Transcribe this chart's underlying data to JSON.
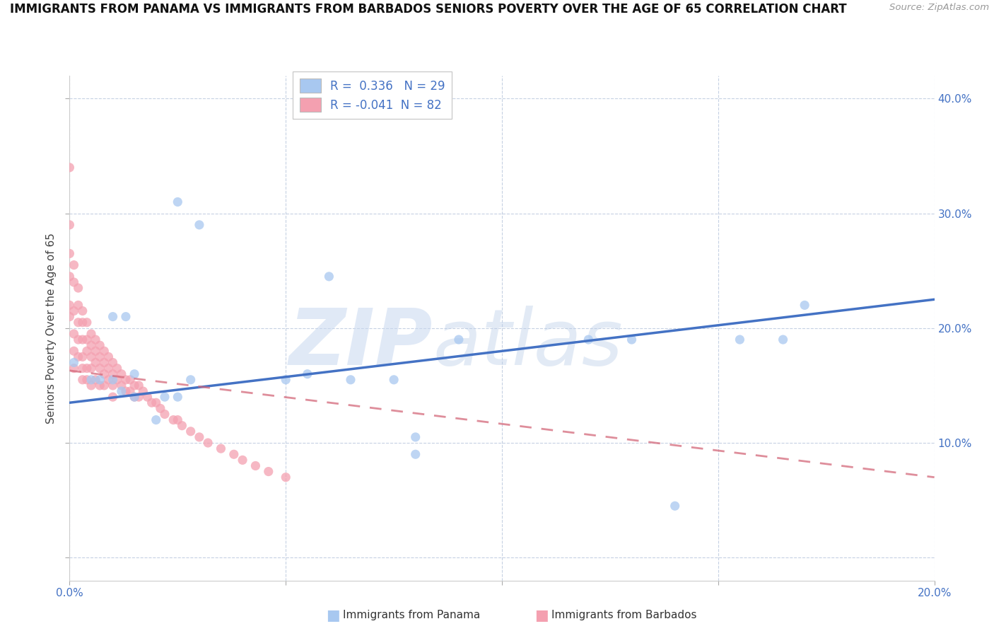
{
  "title": "IMMIGRANTS FROM PANAMA VS IMMIGRANTS FROM BARBADOS SENIORS POVERTY OVER THE AGE OF 65 CORRELATION CHART",
  "source": "Source: ZipAtlas.com",
  "ylabel": "Seniors Poverty Over the Age of 65",
  "xlim": [
    0.0,
    0.2
  ],
  "ylim": [
    -0.02,
    0.42
  ],
  "panama_color": "#a8c8f0",
  "barbados_color": "#f4a0b0",
  "panama_line_color": "#4472c4",
  "barbados_line_color": "#d4687a",
  "panama_R": 0.336,
  "panama_N": 29,
  "barbados_R": -0.041,
  "barbados_N": 82,
  "panama_trend_x": [
    0.0,
    0.2
  ],
  "panama_trend_y": [
    0.135,
    0.225
  ],
  "barbados_trend_x": [
    0.0,
    0.2
  ],
  "barbados_trend_y": [
    0.163,
    0.07
  ],
  "panama_points_x": [
    0.001,
    0.005,
    0.007,
    0.01,
    0.01,
    0.012,
    0.013,
    0.015,
    0.015,
    0.02,
    0.022,
    0.025,
    0.025,
    0.028,
    0.03,
    0.05,
    0.055,
    0.06,
    0.065,
    0.075,
    0.08,
    0.08,
    0.09,
    0.12,
    0.13,
    0.14,
    0.155,
    0.165,
    0.17
  ],
  "panama_points_y": [
    0.17,
    0.155,
    0.155,
    0.155,
    0.21,
    0.145,
    0.21,
    0.14,
    0.16,
    0.12,
    0.14,
    0.14,
    0.31,
    0.155,
    0.29,
    0.155,
    0.16,
    0.245,
    0.155,
    0.155,
    0.105,
    0.09,
    0.19,
    0.19,
    0.19,
    0.045,
    0.19,
    0.19,
    0.22
  ],
  "barbados_points_x": [
    0.0,
    0.0,
    0.0,
    0.0,
    0.0,
    0.0,
    0.001,
    0.001,
    0.001,
    0.001,
    0.001,
    0.001,
    0.002,
    0.002,
    0.002,
    0.002,
    0.002,
    0.003,
    0.003,
    0.003,
    0.003,
    0.003,
    0.003,
    0.004,
    0.004,
    0.004,
    0.004,
    0.004,
    0.005,
    0.005,
    0.005,
    0.005,
    0.005,
    0.006,
    0.006,
    0.006,
    0.006,
    0.007,
    0.007,
    0.007,
    0.007,
    0.008,
    0.008,
    0.008,
    0.008,
    0.009,
    0.009,
    0.009,
    0.01,
    0.01,
    0.01,
    0.01,
    0.011,
    0.011,
    0.012,
    0.012,
    0.013,
    0.013,
    0.014,
    0.014,
    0.015,
    0.015,
    0.016,
    0.016,
    0.017,
    0.018,
    0.019,
    0.02,
    0.021,
    0.022,
    0.024,
    0.025,
    0.026,
    0.028,
    0.03,
    0.032,
    0.035,
    0.038,
    0.04,
    0.043,
    0.046,
    0.05
  ],
  "barbados_points_y": [
    0.34,
    0.29,
    0.265,
    0.245,
    0.22,
    0.21,
    0.255,
    0.24,
    0.215,
    0.195,
    0.18,
    0.165,
    0.235,
    0.22,
    0.205,
    0.19,
    0.175,
    0.215,
    0.205,
    0.19,
    0.175,
    0.165,
    0.155,
    0.205,
    0.19,
    0.18,
    0.165,
    0.155,
    0.195,
    0.185,
    0.175,
    0.165,
    0.15,
    0.19,
    0.18,
    0.17,
    0.155,
    0.185,
    0.175,
    0.165,
    0.15,
    0.18,
    0.17,
    0.16,
    0.15,
    0.175,
    0.165,
    0.155,
    0.17,
    0.16,
    0.15,
    0.14,
    0.165,
    0.155,
    0.16,
    0.15,
    0.155,
    0.145,
    0.155,
    0.145,
    0.15,
    0.14,
    0.15,
    0.14,
    0.145,
    0.14,
    0.135,
    0.135,
    0.13,
    0.125,
    0.12,
    0.12,
    0.115,
    0.11,
    0.105,
    0.1,
    0.095,
    0.09,
    0.085,
    0.08,
    0.075,
    0.07
  ]
}
